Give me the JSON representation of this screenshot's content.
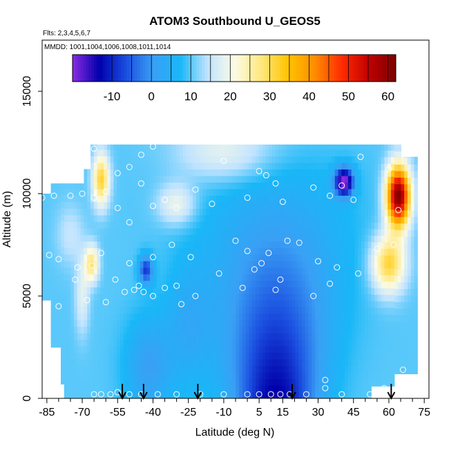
{
  "chart_data": {
    "type": "heatmap",
    "title": "ATOM3 Southbound U_GEOS5",
    "subtitle_flights": "Flts: 2,3,4,5,6,7",
    "subtitle_dates": "MMDD: 1001,1004,1006,1008,1011,1014",
    "xlabel": "Latitude (deg N)",
    "ylabel": "Altitude (m)",
    "xlim": [
      -87,
      77
    ],
    "ylim": [
      0,
      17500
    ],
    "x_ticks": [
      -85,
      -70,
      -55,
      -40,
      -25,
      -10,
      5,
      15,
      30,
      45,
      60,
      75
    ],
    "y_ticks": [
      0,
      5000,
      10000,
      15000
    ],
    "colorbar": {
      "range": [
        -20,
        62
      ],
      "ticks": [
        -10,
        0,
        10,
        20,
        30,
        40,
        50,
        60
      ],
      "colors": [
        "#8a2be2",
        "#0000aa",
        "#1b4fe0",
        "#3aa0f5",
        "#19b7f7",
        "#bfe3ff",
        "#fbfbe6",
        "#ffe880",
        "#ffc400",
        "#ff8c00",
        "#ff2a00",
        "#c00000",
        "#7a0000"
      ]
    },
    "grid": false,
    "legend": "none",
    "flight_markers_lat": [
      -53,
      -44,
      -21,
      19,
      61
    ],
    "samples": [
      [
        -65,
        200
      ],
      [
        -62,
        200
      ],
      [
        -58,
        200
      ],
      [
        -55,
        300
      ],
      [
        -50,
        200
      ],
      [
        -45,
        200
      ],
      [
        -38,
        200
      ],
      [
        -30,
        200
      ],
      [
        -20,
        200
      ],
      [
        -10,
        200
      ],
      [
        0,
        200
      ],
      [
        5,
        200
      ],
      [
        10,
        200
      ],
      [
        14,
        200
      ],
      [
        18,
        200
      ],
      [
        25,
        200
      ],
      [
        33,
        500
      ],
      [
        33,
        900
      ],
      [
        40,
        200
      ],
      [
        52,
        200
      ],
      [
        58,
        500
      ],
      [
        66,
        1400
      ],
      [
        -80,
        4500
      ],
      [
        -68,
        4800
      ],
      [
        -60,
        4700
      ],
      [
        -52,
        5200
      ],
      [
        -48,
        5300
      ],
      [
        -44,
        5200
      ],
      [
        -40,
        5000
      ],
      [
        -35,
        5400
      ],
      [
        -30,
        5500
      ],
      [
        -28,
        4600
      ],
      [
        -22,
        5000
      ],
      [
        -12,
        6100
      ],
      [
        -2,
        5400
      ],
      [
        3,
        6300
      ],
      [
        6,
        6600
      ],
      [
        9,
        7100
      ],
      [
        12,
        5300
      ],
      [
        14,
        5800
      ],
      [
        17,
        7700
      ],
      [
        28,
        5000
      ],
      [
        30,
        6700
      ],
      [
        35,
        5600
      ],
      [
        38,
        6400
      ],
      [
        -84,
        7000
      ],
      [
        -80,
        6800
      ],
      [
        -72,
        6400
      ],
      [
        -66,
        6500
      ],
      [
        -62,
        7100
      ],
      [
        -56,
        5800
      ],
      [
        -50,
        6600
      ],
      [
        -46,
        5500
      ],
      [
        -40,
        6900
      ],
      [
        -32,
        7500
      ],
      [
        -24,
        6900
      ],
      [
        -5,
        7700
      ],
      [
        0,
        7200
      ],
      [
        22,
        7600
      ],
      [
        -70,
        10000
      ],
      [
        -65,
        9800
      ],
      [
        -60,
        10100
      ],
      [
        -55,
        9300
      ],
      [
        -50,
        8600
      ],
      [
        -45,
        10500
      ],
      [
        -40,
        9400
      ],
      [
        -35,
        9700
      ],
      [
        -30,
        9300
      ],
      [
        -22,
        10200
      ],
      [
        -15,
        9500
      ],
      [
        -10,
        11600
      ],
      [
        0,
        9800
      ],
      [
        5,
        11100
      ],
      [
        8,
        10900
      ],
      [
        12,
        10500
      ],
      [
        15,
        9600
      ],
      [
        28,
        10300
      ],
      [
        35,
        9900
      ],
      [
        40,
        10400
      ],
      [
        45,
        9700
      ],
      [
        -65,
        12200
      ],
      [
        -55,
        11000
      ],
      [
        -50,
        11300
      ],
      [
        -45,
        11900
      ],
      [
        -40,
        12300
      ],
      [
        48,
        11800
      ],
      [
        60,
        11200
      ],
      [
        62,
        7500
      ],
      [
        64,
        9200
      ],
      [
        55,
        7300
      ],
      [
        47,
        6100
      ],
      [
        -75,
        9900
      ],
      [
        -82,
        9900
      ],
      [
        -87,
        9800
      ],
      [
        -73,
        5800
      ]
    ]
  }
}
